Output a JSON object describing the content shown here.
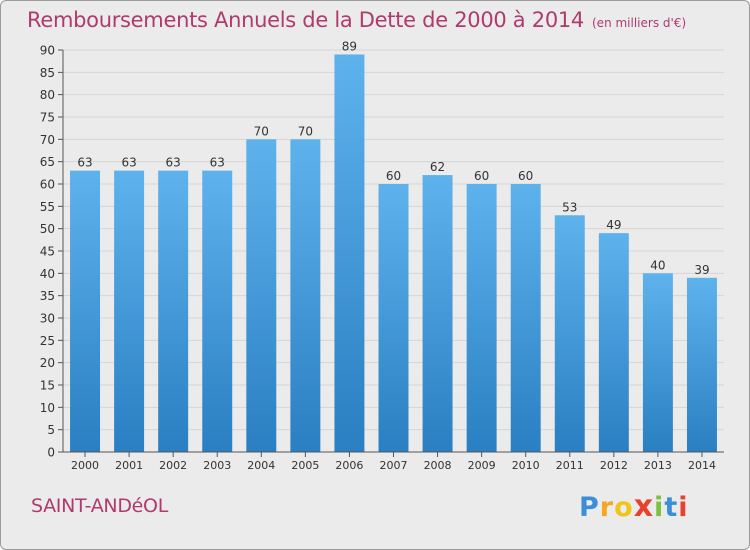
{
  "chart_data": {
    "type": "bar",
    "title": "Remboursements Annuels de la Dette de 2000 à 2014",
    "unit_note": "(en milliers d'€)",
    "categories": [
      "2000",
      "2001",
      "2002",
      "2003",
      "2004",
      "2005",
      "2006",
      "2007",
      "2008",
      "2009",
      "2010",
      "2011",
      "2012",
      "2013",
      "2014"
    ],
    "values": [
      63,
      63,
      63,
      63,
      70,
      70,
      89,
      60,
      62,
      60,
      60,
      53,
      49,
      40,
      39
    ],
    "ylim": [
      0,
      90
    ],
    "yticks": [
      0,
      5,
      10,
      15,
      20,
      25,
      30,
      35,
      40,
      45,
      50,
      55,
      60,
      65,
      70,
      75,
      80,
      85,
      90
    ],
    "xlabel": "",
    "ylabel": "",
    "grid": true,
    "colors": {
      "bar_top": "#5eb2ec",
      "bar_bottom": "#2a7fc2",
      "grid": "#d6d6d6",
      "text": "#333333",
      "title": "#b03a6e"
    }
  },
  "commune": "SAINT-ANDéOL",
  "logo": {
    "letters": [
      "P",
      "r",
      "o",
      "x",
      "i",
      "t",
      "i"
    ],
    "colors": [
      "#3a8fd8",
      "#f5a623",
      "#f0c419",
      "#e8412c",
      "#7cc242",
      "#3a8fd8",
      "#e8412c"
    ]
  }
}
